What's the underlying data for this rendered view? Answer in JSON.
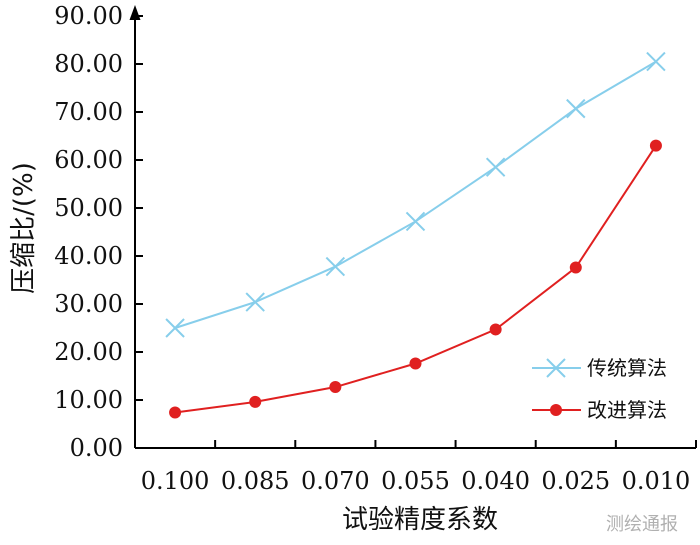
{
  "chart_data": {
    "type": "line",
    "categories": [
      "0.100",
      "0.085",
      "0.070",
      "0.055",
      "0.040",
      "0.025",
      "0.010"
    ],
    "xlabel": "试验精度系数",
    "ylabel": "压缩比/(%)",
    "ylim": [
      0,
      90
    ],
    "yticks": [
      "0.00",
      "10.00",
      "20.00",
      "30.00",
      "40.00",
      "50.00",
      "60.00",
      "70.00",
      "80.00",
      "90.00"
    ],
    "grid": false,
    "legend_position": "right",
    "series": [
      {
        "name": "传统算法",
        "color": "#87CEEB",
        "marker": "x",
        "values": [
          25.0,
          30.4,
          37.8,
          47.2,
          58.5,
          70.7,
          80.5
        ]
      },
      {
        "name": "改进算法",
        "color": "#E02020",
        "marker": "circle",
        "values": [
          7.4,
          9.6,
          12.7,
          17.6,
          24.7,
          37.6,
          63.0
        ]
      }
    ]
  },
  "watermark": "测绘通报"
}
